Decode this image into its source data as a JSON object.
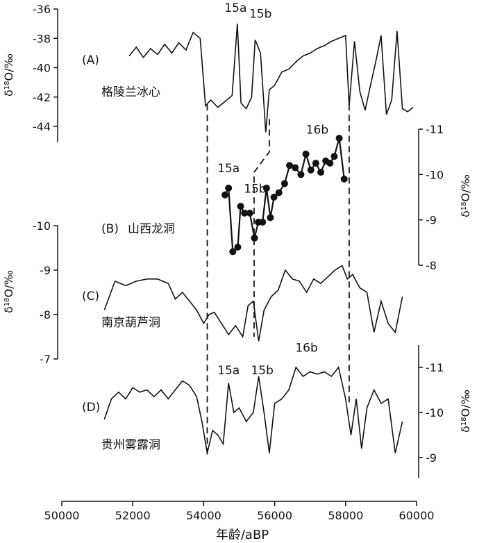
{
  "chart_data": {
    "type": "line",
    "x_axis": {
      "label": "年龄/aBP",
      "min": 50000,
      "max": 60000,
      "ticks": [
        50000,
        52000,
        54000,
        56000,
        58000,
        60000
      ],
      "tick_labels": [
        "50000",
        "52000",
        "54000",
        "56000",
        "58000",
        "60000"
      ]
    },
    "panels": [
      {
        "id": "A",
        "letter": "(A)",
        "name": "格陵兰冰心",
        "axis_side": "left",
        "axis_label": "δ18O/‰",
        "ticks": [
          -36,
          -38,
          -40,
          -42,
          -44
        ],
        "tick_labels": [
          "-36",
          "-38",
          "-40",
          "-42",
          "-44"
        ],
        "annotations": [
          {
            "text": "15a",
            "x": 54900,
            "y": -36.2
          },
          {
            "text": "15b",
            "x": 55600,
            "y": -36.6
          }
        ],
        "x": [
          51900,
          52100,
          52300,
          52500,
          52700,
          52900,
          53100,
          53300,
          53500,
          53700,
          53900,
          54050,
          54200,
          54400,
          54600,
          54800,
          54950,
          55050,
          55200,
          55350,
          55450,
          55600,
          55750,
          55850,
          56000,
          56200,
          56400,
          56600,
          56800,
          57000,
          57200,
          57400,
          57600,
          57800,
          58000,
          58100,
          58250,
          58400,
          58550,
          58700,
          58850,
          59000,
          59150,
          59300,
          59450,
          59600,
          59750,
          59900
        ],
        "y": [
          -39.2,
          -38.6,
          -39.3,
          -38.7,
          -39.1,
          -38.4,
          -39.0,
          -38.3,
          -38.8,
          -37.6,
          -38.0,
          -42.6,
          -42.2,
          -42.7,
          -42.3,
          -41.9,
          -37.0,
          -42.4,
          -42.8,
          -42.0,
          -38.1,
          -39.0,
          -44.4,
          -41.5,
          -41.2,
          -40.3,
          -40.1,
          -39.6,
          -39.2,
          -39.0,
          -38.7,
          -38.5,
          -38.2,
          -38.0,
          -37.8,
          -42.6,
          -38.2,
          -41.6,
          -42.9,
          -41.2,
          -39.6,
          -37.8,
          -43.2,
          -42.2,
          -37.5,
          -42.8,
          -43.0,
          -42.7
        ]
      },
      {
        "id": "B",
        "letter": "(B)",
        "name": "山西龙洞",
        "axis_side": "right",
        "axis_label": "δ18O/‰",
        "ticks": [
          -11,
          -10,
          -9,
          -8
        ],
        "tick_labels": [
          "-11",
          "-10",
          "-9",
          "-8"
        ],
        "annotations": [
          {
            "text": "15a",
            "x": 54700,
            "y": -10.05
          },
          {
            "text": "15b",
            "x": 55450,
            "y": -9.6
          },
          {
            "text": "16b",
            "x": 57200,
            "y": -10.9
          }
        ],
        "x": [
          54600,
          54700,
          54820,
          54960,
          55040,
          55150,
          55300,
          55430,
          55540,
          55660,
          55770,
          55880,
          55980,
          56120,
          56280,
          56420,
          56580,
          56740,
          56880,
          57020,
          57160,
          57300,
          57440,
          57560,
          57680,
          57820,
          57960
        ],
        "y": [
          -9.55,
          -9.7,
          -8.3,
          -8.4,
          -9.3,
          -9.15,
          -9.15,
          -8.6,
          -8.95,
          -8.95,
          -9.7,
          -9.05,
          -9.5,
          -9.6,
          -9.8,
          -10.2,
          -10.15,
          -10.0,
          -10.45,
          -10.1,
          -10.25,
          -10.05,
          -10.3,
          -10.25,
          -10.4,
          -10.8,
          -9.9
        ]
      },
      {
        "id": "C",
        "letter": "(C)",
        "name": "南京葫芦洞",
        "axis_side": "left",
        "axis_label": "δ18O/‰",
        "ticks": [
          -10,
          -9,
          -8,
          -7
        ],
        "tick_labels": [
          "-10",
          "-9",
          "-8",
          "-7"
        ],
        "annotations": [],
        "x": [
          51200,
          51500,
          51800,
          52100,
          52400,
          52700,
          53000,
          53200,
          53400,
          53600,
          53800,
          54000,
          54150,
          54300,
          54500,
          54700,
          54900,
          55100,
          55250,
          55400,
          55550,
          55700,
          55900,
          56100,
          56300,
          56500,
          56700,
          56900,
          57100,
          57300,
          57500,
          57700,
          57900,
          58050,
          58200,
          58400,
          58600,
          58800,
          59000,
          59200,
          59400,
          59600
        ],
        "y": [
          -8.1,
          -8.75,
          -8.65,
          -8.75,
          -8.8,
          -8.8,
          -8.7,
          -8.35,
          -8.5,
          -8.3,
          -8.1,
          -7.8,
          -8.0,
          -8.05,
          -7.8,
          -7.55,
          -7.75,
          -7.5,
          -8.2,
          -8.3,
          -7.4,
          -8.1,
          -8.4,
          -8.55,
          -9.0,
          -8.8,
          -8.75,
          -8.5,
          -8.8,
          -8.7,
          -8.85,
          -9.0,
          -9.1,
          -8.8,
          -8.9,
          -8.6,
          -8.5,
          -7.6,
          -8.3,
          -7.8,
          -7.6,
          -8.4
        ]
      },
      {
        "id": "D",
        "letter": "(D)",
        "name": "贵州雾露洞",
        "axis_side": "right",
        "axis_label": "δ18O/‰",
        "ticks": [
          -11,
          -10,
          -9
        ],
        "tick_labels": [
          "-11",
          "-10",
          "-9"
        ],
        "annotations": [
          {
            "text": "15a",
            "x": 54700,
            "y": -10.85
          },
          {
            "text": "15b",
            "x": 55650,
            "y": -10.85
          },
          {
            "text": "16b",
            "x": 56900,
            "y": -11.35
          }
        ],
        "x": [
          51200,
          51400,
          51600,
          51800,
          52000,
          52200,
          52400,
          52600,
          52800,
          53000,
          53200,
          53400,
          53600,
          53800,
          53950,
          54100,
          54250,
          54400,
          54550,
          54700,
          54850,
          55000,
          55200,
          55400,
          55550,
          55700,
          55850,
          56000,
          56200,
          56400,
          56600,
          56800,
          57000,
          57200,
          57400,
          57600,
          57800,
          58000,
          58150,
          58300,
          58450,
          58600,
          58800,
          59000,
          59200,
          59400,
          59600
        ],
        "y": [
          -9.85,
          -10.3,
          -10.45,
          -10.3,
          -10.55,
          -10.45,
          -10.5,
          -10.35,
          -10.5,
          -10.3,
          -10.5,
          -10.7,
          -10.6,
          -10.35,
          -9.8,
          -9.1,
          -9.6,
          -9.5,
          -9.3,
          -10.65,
          -10.0,
          -10.1,
          -9.8,
          -10.0,
          -10.8,
          -10.0,
          -9.1,
          -10.2,
          -10.3,
          -10.5,
          -11.0,
          -10.8,
          -10.9,
          -10.85,
          -10.9,
          -10.8,
          -11.0,
          -10.3,
          -9.5,
          -10.3,
          -9.2,
          -10.1,
          -10.5,
          -10.2,
          -10.3,
          -9.1,
          -9.8
        ]
      }
    ],
    "dashed_links": [
      {
        "from_panel": "A",
        "to_panel": "D",
        "x": 54100
      },
      {
        "from_panel": "A",
        "to_panel": "C",
        "x_top": 55850,
        "x_bottom": 55420
      },
      {
        "from_panel": "A",
        "to_panel": "D",
        "x": 58100
      }
    ]
  }
}
